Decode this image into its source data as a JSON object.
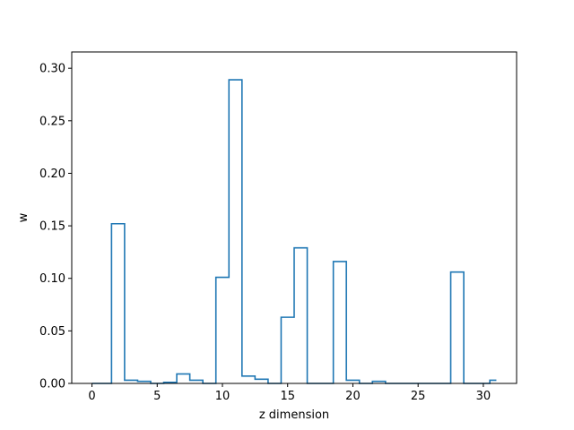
{
  "chart_data": {
    "type": "step",
    "title": "",
    "xlabel": "z dimension",
    "ylabel": "w",
    "xlim": [
      -1.55,
      32.55
    ],
    "ylim": [
      0.0,
      0.3155
    ],
    "grid": false,
    "line_color": "#1f77b4",
    "x_ticks": [
      0,
      5,
      10,
      15,
      20,
      25,
      30
    ],
    "x_tick_labels": [
      "0",
      "5",
      "10",
      "15",
      "20",
      "25",
      "30"
    ],
    "y_ticks": [
      0.0,
      0.05,
      0.1,
      0.15,
      0.2,
      0.25,
      0.3
    ],
    "y_tick_labels": [
      "0.00",
      "0.05",
      "0.10",
      "0.15",
      "0.20",
      "0.25",
      "0.30"
    ],
    "x": [
      0,
      1,
      2,
      3,
      4,
      5,
      6,
      7,
      8,
      9,
      10,
      11,
      12,
      13,
      14,
      15,
      16,
      17,
      18,
      19,
      20,
      21,
      22,
      23,
      24,
      25,
      26,
      27,
      28,
      29,
      30,
      31
    ],
    "values": [
      0.0,
      0.0,
      0.152,
      0.003,
      0.002,
      0.0,
      0.001,
      0.009,
      0.003,
      0.0,
      0.101,
      0.289,
      0.007,
      0.004,
      0.0,
      0.063,
      0.129,
      0.0,
      0.0,
      0.116,
      0.003,
      0.0,
      0.002,
      0.0,
      0.0,
      0.0,
      0.0,
      0.0,
      0.106,
      0.0,
      0.0,
      0.003
    ]
  }
}
